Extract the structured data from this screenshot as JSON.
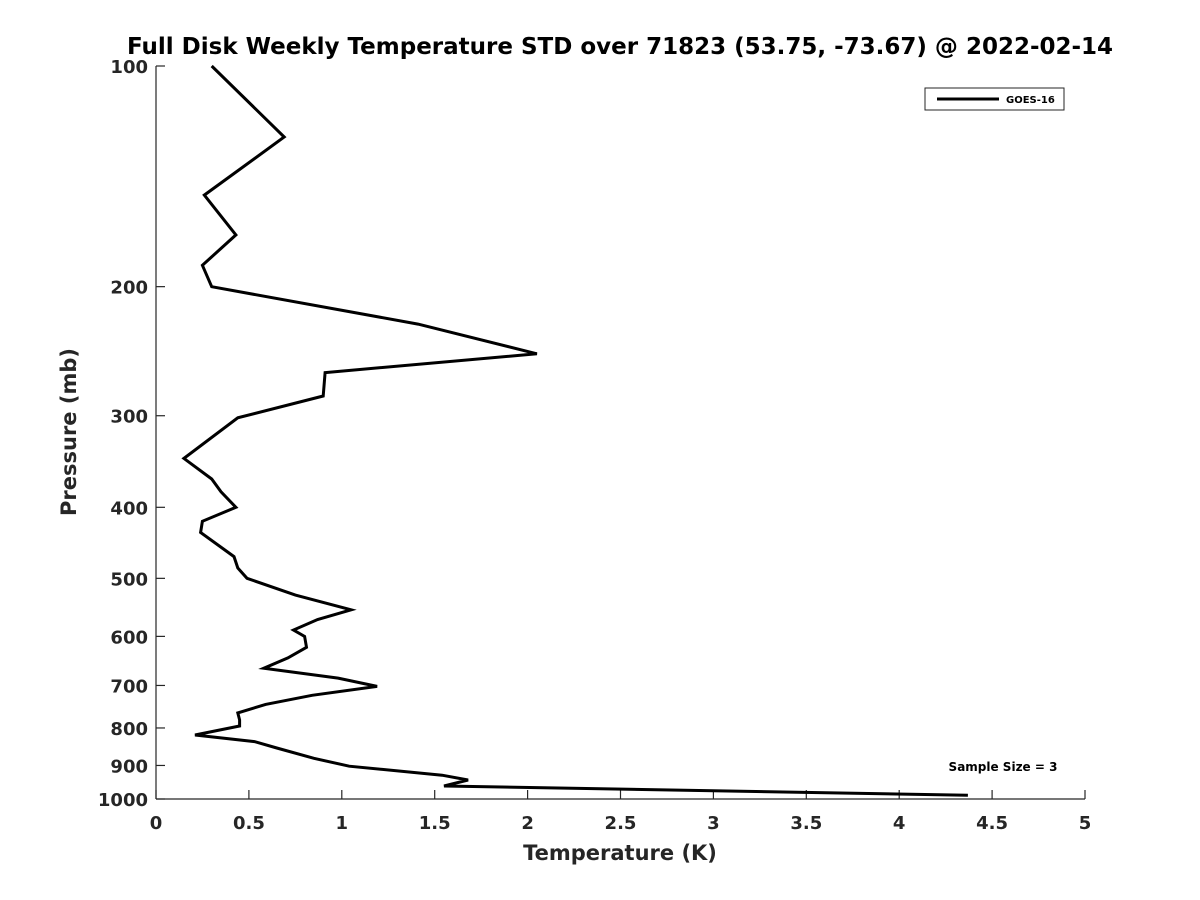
{
  "chart_data": {
    "type": "line",
    "title": "Full Disk Weekly Temperature STD over 71823 (53.75, -73.67) @ 2022-02-14",
    "xlabel": "Temperature (K)",
    "ylabel": "Pressure (mb)",
    "xlim": [
      0,
      5
    ],
    "ylim": [
      100,
      1000
    ],
    "yscale": "log",
    "yreversed": true,
    "grid": false,
    "legend_position": "top-right",
    "x_ticks": [
      "0",
      "0.5",
      "1",
      "1.5",
      "2",
      "2.5",
      "3",
      "3.5",
      "4",
      "4.5",
      "5"
    ],
    "y_ticks": [
      "100",
      "200",
      "300",
      "400",
      "500",
      "600",
      "700",
      "800",
      "900",
      "1000"
    ],
    "annotation": "Sample Size = 3",
    "series": [
      {
        "name": "GOES-16",
        "color": "#000000",
        "points": [
          [
            0.3,
            100
          ],
          [
            0.69,
            125
          ],
          [
            0.26,
            150
          ],
          [
            0.43,
            170
          ],
          [
            0.25,
            187
          ],
          [
            0.3,
            200
          ],
          [
            1.41,
            225
          ],
          [
            2.05,
            247
          ],
          [
            0.91,
            262
          ],
          [
            0.9,
            282
          ],
          [
            0.44,
            302
          ],
          [
            0.15,
            343
          ],
          [
            0.3,
            366
          ],
          [
            0.35,
            381
          ],
          [
            0.43,
            400
          ],
          [
            0.25,
            418
          ],
          [
            0.24,
            433
          ],
          [
            0.42,
            467
          ],
          [
            0.44,
            484
          ],
          [
            0.49,
            500
          ],
          [
            0.75,
            527
          ],
          [
            1.05,
            552
          ],
          [
            0.87,
            569
          ],
          [
            0.74,
            588
          ],
          [
            0.8,
            600
          ],
          [
            0.81,
            621
          ],
          [
            0.71,
            642
          ],
          [
            0.58,
            663
          ],
          [
            0.98,
            684
          ],
          [
            1.19,
            702
          ],
          [
            0.84,
            722
          ],
          [
            0.59,
            743
          ],
          [
            0.44,
            763
          ],
          [
            0.45,
            780
          ],
          [
            0.45,
            795
          ],
          [
            0.21,
            818
          ],
          [
            0.53,
            835
          ],
          [
            0.65,
            852
          ],
          [
            0.85,
            880
          ],
          [
            1.04,
            902
          ],
          [
            1.54,
            928
          ],
          [
            1.68,
            942
          ],
          [
            1.55,
            960
          ],
          [
            4.37,
            988
          ]
        ]
      }
    ]
  }
}
